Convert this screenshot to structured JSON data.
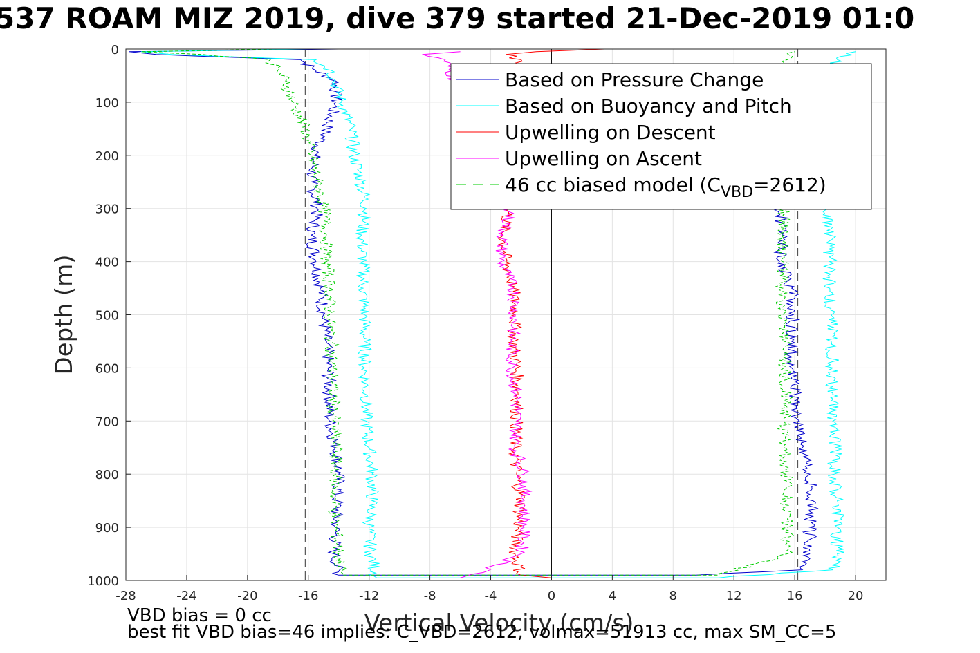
{
  "title": "537 ROAM MIZ 2019, dive 379 started 21-Dec-2019 01:0",
  "notes": {
    "vbd_bias": "VBD bias = 0 cc",
    "best_fit": "best fit VBD bias=46 implies: C_VBD=2612, volmax=51913 cc, max SM_CC=5"
  },
  "colors": {
    "pressure": "#0000cc",
    "buoyancy": "#00ffff",
    "upwelling_descent": "#ff0000",
    "upwelling_ascent": "#ff00ff",
    "model": "#00cc00",
    "reference_lines": "#555555"
  },
  "chart_data": {
    "type": "line",
    "title": "537 ROAM MIZ 2019, dive 379 started 21-Dec-2019 01:0",
    "xlabel": "Vertical Velocity (cm/s)",
    "ylabel": "Depth (m)",
    "xlim": [
      -28,
      22
    ],
    "ylim": [
      0,
      1000
    ],
    "y_reversed": true,
    "grid": true,
    "xticks": [
      -28,
      -24,
      -20,
      -16,
      -12,
      -8,
      -4,
      0,
      4,
      8,
      12,
      16,
      20
    ],
    "yticks": [
      0,
      100,
      200,
      300,
      400,
      500,
      600,
      700,
      800,
      900,
      1000
    ],
    "legend_position": "top-right",
    "vertical_reference_lines": [
      -16.2,
      16.2
    ],
    "series": [
      {
        "name": "Based on Pressure Change",
        "style": "solid",
        "depth": [
          0,
          5,
          10,
          20,
          40,
          60,
          80,
          100,
          150,
          200,
          250,
          300,
          350,
          400,
          450,
          500,
          550,
          600,
          650,
          700,
          750,
          800,
          850,
          900,
          950,
          990,
          990,
          980,
          950,
          900,
          850,
          800,
          750,
          700,
          650,
          600,
          550,
          500,
          450,
          400,
          350,
          300
        ],
        "velocity": [
          -14,
          -27.8,
          -26,
          -16.5,
          -15.5,
          -14.2,
          -14.2,
          -14.2,
          -14.8,
          -15.6,
          -15.8,
          -15.4,
          -15.8,
          -15.5,
          -15.2,
          -15.0,
          -14.8,
          -14.7,
          -14.6,
          -14.6,
          -14.2,
          -14.0,
          -14.1,
          -14.2,
          -14.3,
          -14.0,
          9.5,
          16.5,
          17.0,
          17.0,
          17.2,
          17.0,
          16.5,
          16.3,
          16.0,
          15.8,
          15.8,
          15.9,
          15.8,
          15.0,
          15.2,
          15.0
        ]
      },
      {
        "name": "Based on Buoyancy and Pitch",
        "style": "solid",
        "depth": [
          0,
          5,
          10,
          20,
          40,
          60,
          100,
          150,
          200,
          250,
          300,
          350,
          400,
          450,
          500,
          550,
          600,
          650,
          700,
          750,
          800,
          850,
          900,
          950,
          995,
          995,
          980,
          950,
          900,
          850,
          800,
          750,
          700,
          650,
          600,
          550,
          500,
          450,
          400,
          350,
          300,
          250,
          200,
          150,
          100,
          60,
          20,
          5
        ],
        "velocity": [
          -16,
          -27,
          -25,
          -15.5,
          -14.5,
          -14.3,
          -13.8,
          -13.2,
          -13.0,
          -12.5,
          -12.2,
          -12.5,
          -12.4,
          -12.4,
          -12.3,
          -12.3,
          -12.3,
          -12.2,
          -12.2,
          -12.0,
          -11.8,
          -11.8,
          -12.0,
          -11.9,
          -11.5,
          11,
          18.5,
          18.8,
          18.8,
          18.8,
          18.6,
          18.7,
          18.5,
          18.5,
          18.5,
          18.4,
          18.4,
          18.3,
          18.3,
          18.3,
          18.2,
          18.5,
          18.6,
          18.6,
          18.7,
          18.6,
          18.8,
          20
        ]
      },
      {
        "name": "Upwelling on Descent",
        "style": "solid",
        "depth": [
          0,
          5,
          10,
          20,
          300,
          350,
          400,
          450,
          500,
          550,
          600,
          650,
          700,
          750,
          800,
          850,
          900,
          950,
          990,
          995
        ],
        "velocity": [
          3.5,
          -1,
          -3,
          -2,
          -2.8,
          -3.2,
          -3.0,
          -2.5,
          -2.4,
          -2.5,
          -2.3,
          -2.2,
          -2.3,
          -2.4,
          -2.3,
          -2.0,
          -2.2,
          -2.4,
          -2.0,
          0
        ]
      },
      {
        "name": "Upwelling on Ascent",
        "style": "solid",
        "depth": [
          5,
          10,
          20,
          300,
          350,
          400,
          450,
          500,
          550,
          600,
          650,
          700,
          750,
          800,
          850,
          900,
          950,
          985,
          995
        ],
        "velocity": [
          -6,
          -8.5,
          -7,
          -2.6,
          -3.2,
          -3.3,
          -2.5,
          -2.4,
          -2.6,
          -2.6,
          -2.3,
          -2.3,
          -2.4,
          -1.8,
          -1.8,
          -1.8,
          -2.0,
          -4.5,
          -6
        ]
      },
      {
        "name": "46 cc biased model (C_VBD=2612)",
        "style": "dashed",
        "depth": [
          0,
          5,
          10,
          20,
          40,
          60,
          100,
          150,
          200,
          250,
          300,
          350,
          400,
          450,
          500,
          550,
          600,
          650,
          700,
          750,
          800,
          850,
          900,
          950,
          990,
          990,
          950,
          900,
          850,
          800,
          750,
          700,
          650,
          600,
          550,
          500,
          450,
          400,
          350,
          300,
          250,
          200,
          150,
          100,
          60,
          20,
          5
        ],
        "velocity": [
          -18,
          -27,
          -23,
          -18.5,
          -18.0,
          -17.5,
          -17.0,
          -16.2,
          -15.8,
          -15.4,
          -15.0,
          -14.8,
          -14.8,
          -14.6,
          -14.6,
          -14.5,
          -14.4,
          -14.4,
          -14.3,
          -14.2,
          -14.2,
          -14.3,
          -14.2,
          -14.0,
          -13.8,
          11,
          15.5,
          15.5,
          15.5,
          15.4,
          15.3,
          15.3,
          15.4,
          15.3,
          15.3,
          15.2,
          15.2,
          15.2,
          15.2,
          15.3,
          15.4,
          15.5,
          15.6,
          15.6,
          15.6,
          15.5,
          16.0
        ]
      }
    ]
  }
}
